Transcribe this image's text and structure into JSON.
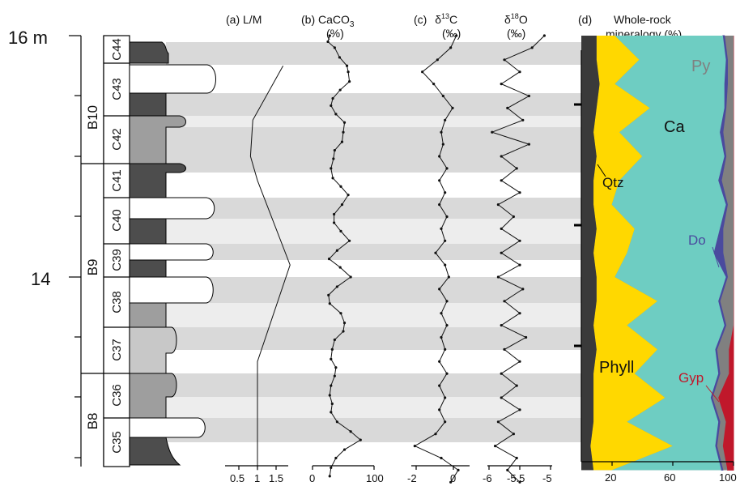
{
  "depth_axis": {
    "unit_label": "16 m",
    "mid_label": "14"
  },
  "beds": [
    "B10",
    "B9",
    "B8"
  ],
  "cycles": [
    "C44",
    "C43",
    "C42",
    "C41",
    "C40",
    "C39",
    "C38",
    "C37",
    "C36",
    "C35"
  ],
  "panels": {
    "a": {
      "letter": "(a)",
      "title": "L/M",
      "ticks": [
        "0.5",
        "1",
        "1.5"
      ]
    },
    "b": {
      "letter": "(b)",
      "title": "CaCO",
      "title_sub": "3",
      "unit": "(%)",
      "ticks": [
        "0",
        "100"
      ]
    },
    "c": {
      "letter": "(c)",
      "title_pre": "δ",
      "title_sup": "13",
      "title_post": "C",
      "unit": "(‰)",
      "ticks": [
        "-2",
        "0"
      ]
    },
    "o": {
      "title_pre": "δ",
      "title_sup": "18",
      "title_post": "O",
      "unit": "(‰)",
      "ticks": [
        "-6",
        "-5.5",
        "-5"
      ]
    },
    "d": {
      "letter": "(d)",
      "title_line1": "Whole-rock",
      "title_line2": "mineralogy (%)",
      "ticks": [
        "20",
        "60",
        "100"
      ]
    }
  },
  "mineral_labels": {
    "py": "Py",
    "ca": "Ca",
    "qtz": "Qtz",
    "do": "Do",
    "phyll": "Phyll",
    "gyp": "Gyp"
  },
  "colors": {
    "band_dark": "#d9d9d9",
    "band_light": "#ededed",
    "litho_dark": "#4d4d4d",
    "litho_mid": "#9e9e9e",
    "litho_light": "#c8c8c8",
    "phyllosilicates": "#ffd800",
    "calcite": "#6ecdc2",
    "quartz": "#3a3a3a",
    "pyrite": "#808080",
    "dolomite": "#4a4a9e",
    "gypsum": "#c0182b"
  },
  "chart_data": [
    {
      "type": "line",
      "title": "L/M",
      "xlabel": "L/M",
      "xlim": [
        0.2,
        1.8
      ],
      "depth_axis": "m",
      "points": [
        [
          1.55,
          15.75
        ],
        [
          0.9,
          15.3
        ],
        [
          0.85,
          15.0
        ],
        [
          1.0,
          14.8
        ],
        [
          1.7,
          14.1
        ],
        [
          1.0,
          13.3
        ],
        [
          1.0,
          12.9
        ],
        [
          1.0,
          12.4
        ]
      ]
    },
    {
      "type": "line",
      "title": "CaCO3 (%)",
      "xlabel": "CaCO3 (%)",
      "xlim": [
        0,
        100
      ],
      "points": [
        [
          28,
          16.0
        ],
        [
          25,
          15.95
        ],
        [
          36,
          15.9
        ],
        [
          44,
          15.82
        ],
        [
          56,
          15.75
        ],
        [
          58,
          15.7
        ],
        [
          60,
          15.62
        ],
        [
          45,
          15.55
        ],
        [
          33,
          15.48
        ],
        [
          30,
          15.42
        ],
        [
          38,
          15.35
        ],
        [
          52,
          15.28
        ],
        [
          50,
          15.2
        ],
        [
          48,
          15.12
        ],
        [
          36,
          15.05
        ],
        [
          34,
          14.98
        ],
        [
          30,
          14.9
        ],
        [
          33,
          14.82
        ],
        [
          46,
          14.75
        ],
        [
          58,
          14.68
        ],
        [
          48,
          14.6
        ],
        [
          35,
          14.52
        ],
        [
          35,
          14.45
        ],
        [
          46,
          14.38
        ],
        [
          60,
          14.3
        ],
        [
          40,
          14.22
        ],
        [
          27,
          14.15
        ],
        [
          45,
          14.08
        ],
        [
          62,
          14.0
        ],
        [
          40,
          13.92
        ],
        [
          26,
          13.85
        ],
        [
          28,
          13.78
        ],
        [
          46,
          13.7
        ],
        [
          52,
          13.62
        ],
        [
          50,
          13.55
        ],
        [
          36,
          13.48
        ],
        [
          32,
          13.4
        ],
        [
          30,
          13.32
        ],
        [
          38,
          13.25
        ],
        [
          36,
          13.18
        ],
        [
          30,
          13.1
        ],
        [
          28,
          13.02
        ],
        [
          32,
          12.95
        ],
        [
          30,
          12.88
        ],
        [
          40,
          12.8
        ],
        [
          62,
          12.72
        ],
        [
          78,
          12.65
        ],
        [
          52,
          12.57
        ],
        [
          38,
          12.5
        ],
        [
          30,
          12.42
        ],
        [
          28,
          12.35
        ]
      ]
    },
    {
      "type": "line",
      "title": "δ13C (‰)",
      "xlabel": "δ13C (‰)",
      "xlim": [
        -2.3,
        1.3
      ],
      "points": [
        [
          0.6,
          16.0
        ],
        [
          0.3,
          15.9
        ],
        [
          -0.4,
          15.8
        ],
        [
          -1.2,
          15.7
        ],
        [
          -0.6,
          15.6
        ],
        [
          -0.1,
          15.5
        ],
        [
          0.4,
          15.4
        ],
        [
          0.0,
          15.3
        ],
        [
          -0.2,
          15.2
        ],
        [
          -0.1,
          15.1
        ],
        [
          -0.3,
          15.0
        ],
        [
          0.1,
          14.9
        ],
        [
          -0.3,
          14.8
        ],
        [
          0.0,
          14.7
        ],
        [
          -0.3,
          14.6
        ],
        [
          0.1,
          14.5
        ],
        [
          -0.2,
          14.4
        ],
        [
          0.0,
          14.3
        ],
        [
          -0.5,
          14.2
        ],
        [
          0.0,
          14.1
        ],
        [
          0.2,
          14.0
        ],
        [
          -0.3,
          13.9
        ],
        [
          0.1,
          13.8
        ],
        [
          -0.2,
          13.7
        ],
        [
          0.1,
          13.6
        ],
        [
          -0.2,
          13.5
        ],
        [
          0.0,
          13.4
        ],
        [
          -0.3,
          13.3
        ],
        [
          0.1,
          13.2
        ],
        [
          -0.3,
          13.1
        ],
        [
          0.0,
          13.0
        ],
        [
          -0.3,
          12.9
        ],
        [
          0.0,
          12.8
        ],
        [
          -0.5,
          12.7
        ],
        [
          -1.6,
          12.6
        ],
        [
          -0.2,
          12.5
        ],
        [
          0.7,
          12.4
        ],
        [
          0.3,
          12.3
        ]
      ]
    },
    {
      "type": "line",
      "title": "δ18O (‰)",
      "xlabel": "δ18O (‰)",
      "xlim": [
        -6.0,
        -5.0
      ],
      "points": [
        [
          -5.1,
          16.0
        ],
        [
          -5.3,
          15.9
        ],
        [
          -5.75,
          15.8
        ],
        [
          -5.5,
          15.7
        ],
        [
          -5.8,
          15.6
        ],
        [
          -5.35,
          15.5
        ],
        [
          -5.7,
          15.4
        ],
        [
          -5.45,
          15.3
        ],
        [
          -5.95,
          15.2
        ],
        [
          -5.35,
          15.1
        ],
        [
          -5.8,
          15.0
        ],
        [
          -5.55,
          14.9
        ],
        [
          -5.8,
          14.8
        ],
        [
          -5.5,
          14.7
        ],
        [
          -5.85,
          14.6
        ],
        [
          -5.6,
          14.5
        ],
        [
          -5.8,
          14.4
        ],
        [
          -5.5,
          14.3
        ],
        [
          -5.8,
          14.2
        ],
        [
          -5.5,
          14.1
        ],
        [
          -5.85,
          14.0
        ],
        [
          -5.45,
          13.9
        ],
        [
          -5.75,
          13.8
        ],
        [
          -5.5,
          13.7
        ],
        [
          -5.8,
          13.6
        ],
        [
          -5.4,
          13.5
        ],
        [
          -5.75,
          13.4
        ],
        [
          -5.5,
          13.3
        ],
        [
          -5.8,
          13.2
        ],
        [
          -5.55,
          13.1
        ],
        [
          -5.8,
          13.0
        ],
        [
          -5.5,
          12.9
        ],
        [
          -5.85,
          12.8
        ],
        [
          -5.6,
          12.7
        ],
        [
          -5.9,
          12.6
        ],
        [
          -5.55,
          12.5
        ],
        [
          -5.7,
          12.4
        ],
        [
          -5.5,
          12.3
        ]
      ]
    },
    {
      "type": "area",
      "title": "Whole-rock mineralogy (%)",
      "xlabel": "Whole-rock mineralogy (%)",
      "xlim": [
        0,
        100
      ],
      "series_order": [
        "Qtz",
        "Phyll",
        "Ca",
        "Do",
        "Py",
        "Gyp"
      ],
      "rows": [
        {
          "depth": 16.0,
          "cum": [
            10,
            22,
            93,
            94,
            100,
            100
          ]
        },
        {
          "depth": 15.8,
          "cum": [
            10,
            38,
            95,
            96,
            100,
            100
          ]
        },
        {
          "depth": 15.6,
          "cum": [
            12,
            22,
            94,
            96,
            100,
            100
          ]
        },
        {
          "depth": 15.4,
          "cum": [
            10,
            45,
            94,
            95,
            100,
            100
          ]
        },
        {
          "depth": 15.2,
          "cum": [
            8,
            25,
            91,
            93,
            100,
            100
          ]
        },
        {
          "depth": 15.0,
          "cum": [
            10,
            40,
            94,
            95,
            100,
            100
          ]
        },
        {
          "depth": 14.8,
          "cum": [
            8,
            25,
            90,
            92,
            100,
            100
          ]
        },
        {
          "depth": 14.6,
          "cum": [
            8,
            20,
            95,
            96,
            100,
            100
          ]
        },
        {
          "depth": 14.4,
          "cum": [
            10,
            35,
            91,
            93,
            100,
            100
          ]
        },
        {
          "depth": 14.2,
          "cum": [
            8,
            30,
            87,
            93,
            100,
            100
          ]
        },
        {
          "depth": 14.0,
          "cum": [
            10,
            22,
            95,
            96,
            100,
            100
          ]
        },
        {
          "depth": 13.8,
          "cum": [
            10,
            50,
            90,
            91,
            100,
            100
          ]
        },
        {
          "depth": 13.6,
          "cum": [
            8,
            30,
            94,
            95,
            100,
            100
          ]
        },
        {
          "depth": 13.4,
          "cum": [
            10,
            50,
            88,
            89,
            97,
            100
          ]
        },
        {
          "depth": 13.2,
          "cum": [
            8,
            35,
            90,
            91,
            97,
            100
          ]
        },
        {
          "depth": 13.0,
          "cum": [
            8,
            55,
            85,
            86,
            90,
            100
          ]
        },
        {
          "depth": 12.8,
          "cum": [
            8,
            30,
            90,
            91,
            95,
            100
          ]
        },
        {
          "depth": 12.6,
          "cum": [
            6,
            60,
            88,
            89,
            93,
            100
          ]
        },
        {
          "depth": 12.4,
          "cum": [
            8,
            20,
            92,
            93,
            96,
            100
          ]
        }
      ]
    }
  ]
}
